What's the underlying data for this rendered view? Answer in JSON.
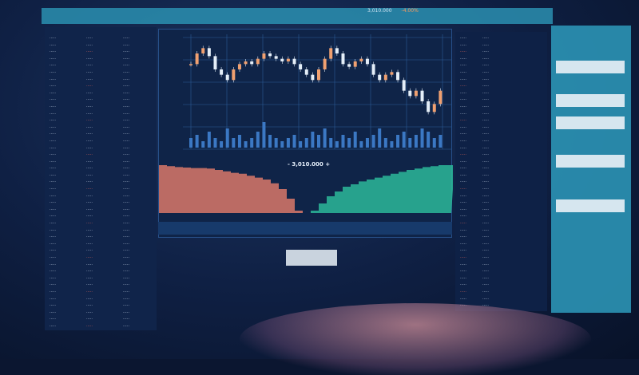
{
  "header": {
    "last_price": "3,010.000",
    "change": "-4.00%"
  },
  "chart_data": {
    "type": "candlestick",
    "closes": [
      70,
      74,
      76,
      73,
      68,
      66,
      64,
      68,
      70,
      71,
      70,
      72,
      74,
      73,
      72,
      71,
      72,
      70,
      68,
      66,
      64,
      68,
      72,
      76,
      74,
      70,
      69,
      71,
      72,
      70,
      66,
      64,
      66,
      67,
      64,
      60,
      58,
      60,
      56,
      52,
      55,
      60
    ],
    "volumes": [
      3,
      4,
      2,
      5,
      3,
      2,
      6,
      3,
      4,
      2,
      3,
      5,
      8,
      4,
      3,
      2,
      3,
      4,
      2,
      3,
      5,
      4,
      6,
      3,
      2,
      4,
      3,
      5,
      2,
      3,
      4,
      6,
      3,
      2,
      4,
      5,
      3,
      4,
      6,
      5,
      3,
      4
    ],
    "depth": {
      "bids": [
        100,
        98,
        96,
        95,
        94,
        94,
        93,
        90,
        87,
        84,
        82,
        78,
        74,
        70,
        62,
        50,
        30,
        5
      ],
      "asks": [
        5,
        20,
        35,
        45,
        55,
        60,
        66,
        70,
        74,
        78,
        82,
        86,
        90,
        93,
        96,
        98,
        100,
        100
      ]
    },
    "colors": {
      "up": "#f0a070",
      "down": "#e4eef8",
      "bid": "#d9786a",
      "ask": "#2bb89a"
    }
  },
  "main": {
    "mid_price": "- 3,010.000 +",
    "button_label": ""
  },
  "colors": {
    "accent": "#2a8fb0",
    "background": "#0b1630"
  }
}
